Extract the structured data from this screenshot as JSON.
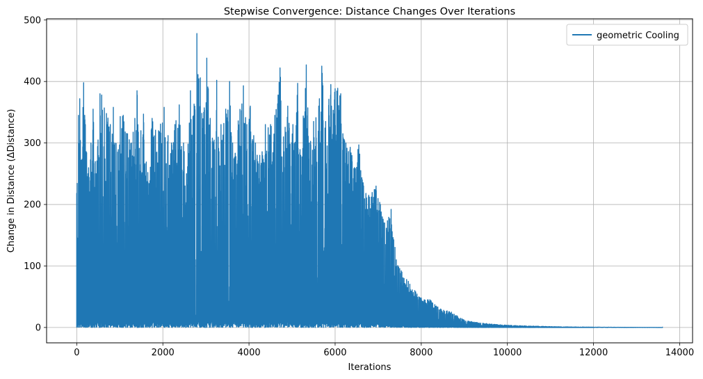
{
  "chart_data": {
    "type": "line",
    "title": "Stepwise Convergence: Distance Changes Over Iterations",
    "xlabel": "Iterations",
    "ylabel": "Change in Distance (ΔDistance)",
    "xlim": [
      -700,
      14300
    ],
    "ylim": [
      -25,
      502
    ],
    "xticks": [
      0,
      2000,
      4000,
      6000,
      8000,
      10000,
      12000,
      14000
    ],
    "yticks": [
      0,
      100,
      200,
      300,
      400,
      500
    ],
    "grid": true,
    "legend": "top-right",
    "series": [
      {
        "name": "geometric Cooling",
        "color": "#1f77b4",
        "x_start": 0,
        "x_end": 13600,
        "peaks": [
          [
            0,
            218
          ],
          [
            40,
            345
          ],
          [
            70,
            372
          ],
          [
            110,
            265
          ],
          [
            160,
            398
          ],
          [
            200,
            330
          ],
          [
            260,
            250
          ],
          [
            330,
            300
          ],
          [
            380,
            355
          ],
          [
            450,
            250
          ],
          [
            540,
            380
          ],
          [
            580,
            378
          ],
          [
            640,
            357
          ],
          [
            690,
            348
          ],
          [
            780,
            330
          ],
          [
            850,
            358
          ],
          [
            950,
            285
          ],
          [
            1010,
            343
          ],
          [
            1080,
            345
          ],
          [
            1180,
            315
          ],
          [
            1270,
            300
          ],
          [
            1350,
            340
          ],
          [
            1400,
            385
          ],
          [
            1490,
            320
          ],
          [
            1550,
            347
          ],
          [
            1650,
            252
          ],
          [
            1750,
            340
          ],
          [
            1900,
            320
          ],
          [
            2030,
            358
          ],
          [
            2120,
            312
          ],
          [
            2200,
            300
          ],
          [
            2280,
            330
          ],
          [
            2380,
            362
          ],
          [
            2480,
            300
          ],
          [
            2550,
            250
          ],
          [
            2640,
            385
          ],
          [
            2700,
            343
          ],
          [
            2790,
            478
          ],
          [
            2870,
            406
          ],
          [
            2950,
            350
          ],
          [
            3020,
            438
          ],
          [
            3100,
            340
          ],
          [
            3180,
            300
          ],
          [
            3250,
            402
          ],
          [
            3350,
            330
          ],
          [
            3460,
            355
          ],
          [
            3550,
            400
          ],
          [
            3620,
            300
          ],
          [
            3750,
            336
          ],
          [
            3870,
            393
          ],
          [
            3950,
            330
          ],
          [
            4030,
            360
          ],
          [
            4150,
            300
          ],
          [
            4250,
            280
          ],
          [
            4380,
            330
          ],
          [
            4500,
            330
          ],
          [
            4600,
            345
          ],
          [
            4720,
            422
          ],
          [
            4800,
            310
          ],
          [
            4900,
            360
          ],
          [
            5020,
            330
          ],
          [
            5130,
            397
          ],
          [
            5200,
            280
          ],
          [
            5330,
            427
          ],
          [
            5400,
            300
          ],
          [
            5500,
            335
          ],
          [
            5620,
            360
          ],
          [
            5690,
            425
          ],
          [
            5780,
            335
          ],
          [
            5900,
            395
          ],
          [
            6060,
            389
          ],
          [
            6130,
            380
          ],
          [
            6180,
            315
          ],
          [
            6250,
            300
          ],
          [
            6350,
            293
          ],
          [
            6450,
            260
          ],
          [
            6550,
            297
          ],
          [
            6630,
            240
          ],
          [
            6780,
            215
          ],
          [
            6950,
            230
          ],
          [
            7050,
            200
          ],
          [
            7150,
            170
          ],
          [
            7300,
            192
          ],
          [
            7420,
            110
          ],
          [
            7550,
            90
          ],
          [
            7700,
            75
          ],
          [
            7850,
            60
          ],
          [
            8000,
            48
          ],
          [
            8200,
            45
          ],
          [
            8450,
            30
          ],
          [
            8700,
            25
          ],
          [
            9000,
            12
          ],
          [
            9300,
            8
          ],
          [
            9700,
            5
          ],
          [
            10200,
            3
          ],
          [
            10700,
            2
          ],
          [
            11200,
            1
          ],
          [
            12000,
            0.5
          ],
          [
            13600,
            0
          ]
        ]
      }
    ]
  }
}
